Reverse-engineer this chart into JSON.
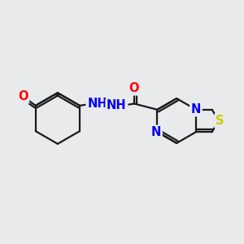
{
  "background_color": "#e8eaec",
  "bond_color": "#1a1a1a",
  "atom_colors": {
    "O": "#ff0000",
    "N": "#0000ee",
    "S": "#cccc00",
    "H": "#708090",
    "C": "#1a1a1a"
  },
  "font_size": 10.5,
  "fig_width": 3.0,
  "fig_height": 3.0,
  "dpi": 100
}
